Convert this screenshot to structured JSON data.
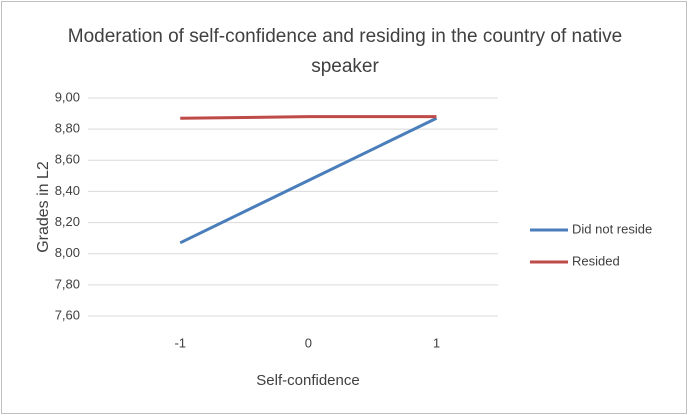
{
  "chart_data": {
    "type": "line",
    "title": "Moderation of self-confidence and residing in the country of native speaker",
    "xlabel": "Self-confidence",
    "ylabel": "Grades in L2",
    "x": [
      -1,
      0,
      1
    ],
    "xlim": [
      -1.72,
      1.48
    ],
    "xticks": [
      -1,
      0,
      1
    ],
    "ylim": [
      7.6,
      9.0
    ],
    "yticks": [
      {
        "value": 7.6,
        "label": "7,60"
      },
      {
        "value": 7.8,
        "label": "7,80"
      },
      {
        "value": 8.0,
        "label": "8,00"
      },
      {
        "value": 8.2,
        "label": "8,20"
      },
      {
        "value": 8.4,
        "label": "8,40"
      },
      {
        "value": 8.6,
        "label": "8,60"
      },
      {
        "value": 8.8,
        "label": "8,80"
      },
      {
        "value": 9.0,
        "label": "9,00"
      }
    ],
    "grid": true,
    "legend": "right",
    "series": [
      {
        "name": "Did not reside",
        "color": "#4a7ebb",
        "values": [
          8.07,
          8.47,
          8.87
        ]
      },
      {
        "name": "Resided",
        "color": "#be4b48",
        "values": [
          8.87,
          8.88,
          8.88
        ]
      }
    ]
  }
}
